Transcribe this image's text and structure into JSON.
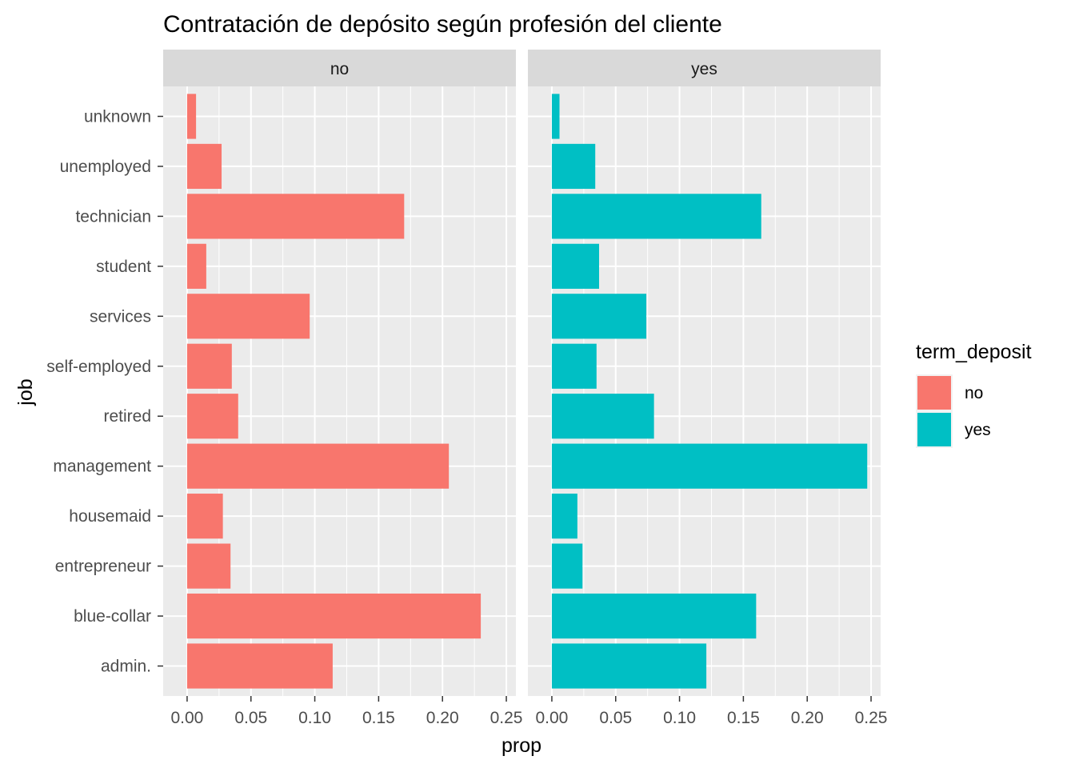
{
  "chart_data": {
    "type": "bar",
    "orientation": "horizontal",
    "title": "Contratación de depósito según profesión del cliente",
    "xlabel": "prop",
    "ylabel": "job",
    "xlim": [
      0,
      0.25
    ],
    "x_ticks": [
      "0.00",
      "0.05",
      "0.10",
      "0.15",
      "0.20",
      "0.25"
    ],
    "grid": true,
    "facet_variable": "term_deposit",
    "categories": [
      "admin.",
      "blue-collar",
      "entrepreneur",
      "housemaid",
      "management",
      "retired",
      "self-employed",
      "services",
      "student",
      "technician",
      "unemployed",
      "unknown"
    ],
    "panels": [
      {
        "name": "no",
        "color": "#F8766D",
        "values": [
          0.114,
          0.23,
          0.034,
          0.028,
          0.205,
          0.04,
          0.035,
          0.096,
          0.015,
          0.17,
          0.027,
          0.007
        ]
      },
      {
        "name": "yes",
        "color": "#00BFC4",
        "values": [
          0.121,
          0.16,
          0.024,
          0.02,
          0.247,
          0.08,
          0.035,
          0.074,
          0.037,
          0.164,
          0.034,
          0.006
        ]
      }
    ],
    "legend": {
      "title": "term_deposit",
      "position": "right",
      "items": [
        {
          "label": "no",
          "color": "#F8766D"
        },
        {
          "label": "yes",
          "color": "#00BFC4"
        }
      ]
    }
  }
}
